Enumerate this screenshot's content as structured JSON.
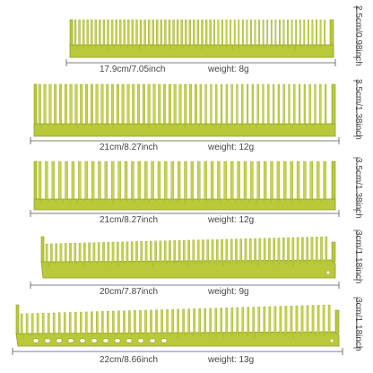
{
  "colors": {
    "comb_fill": "#b9c93a",
    "comb_edge": "#8f9e22",
    "tooth_fill": "#c6d44a",
    "ruler_line": "#555555",
    "text": "#444444",
    "background": "#ffffff"
  },
  "combs": [
    {
      "id": "comb-1",
      "length_label": "17.9cm/7.05inch",
      "weight_label": "weight:  8g",
      "height_label": "2.5cm/0.98inch",
      "teeth": 62,
      "hole_row": false,
      "end_hook": false
    },
    {
      "id": "comb-2",
      "length_label": "21cm/8.27inch",
      "weight_label": "weight:  12g",
      "height_label": "3.5cm/1.38inch",
      "teeth": 56,
      "hole_row": false,
      "end_hook": false
    },
    {
      "id": "comb-3",
      "length_label": "21cm/8.27inch",
      "weight_label": "weight:  12g",
      "height_label": "3.5cm/1.38inch",
      "teeth": 44,
      "hole_row": false,
      "end_hook": false
    },
    {
      "id": "comb-4",
      "length_label": "20cm/7.87inch",
      "weight_label": "weight:  9g",
      "height_label": "3cm/1.18inch",
      "teeth": 60,
      "hole_row": false,
      "end_hook": true
    },
    {
      "id": "comb-5",
      "length_label": "22cm/8.66inch",
      "weight_label": "weight:  13g",
      "height_label": "3cm/1.18inch",
      "teeth": 58,
      "hole_row": true,
      "end_hook": true
    }
  ]
}
